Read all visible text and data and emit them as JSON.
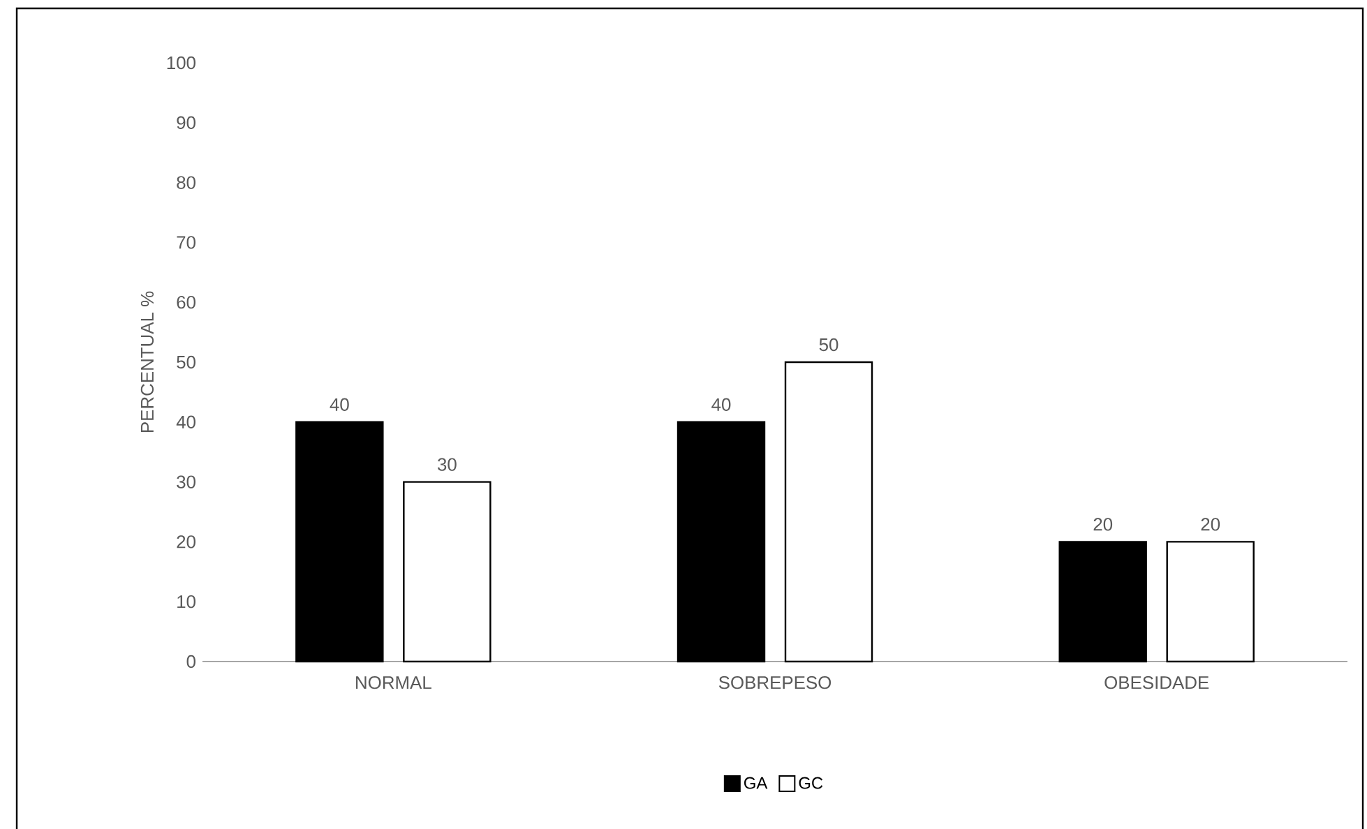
{
  "chart_data": {
    "type": "bar",
    "ylabel": "PERCENTUAL %",
    "categories": [
      "NORMAL",
      "SOBREPESO",
      "OBESIDADE"
    ],
    "series": [
      {
        "name": "GA",
        "color": "#000000",
        "values": [
          40,
          40,
          20
        ]
      },
      {
        "name": "GC",
        "color": "#ffffff",
        "values": [
          30,
          50,
          20
        ]
      }
    ],
    "ylim": [
      0,
      100
    ],
    "yticks": [
      0,
      10,
      20,
      30,
      40,
      50,
      60,
      70,
      80,
      90,
      100
    ],
    "data_labels": true,
    "legend": "bottom"
  }
}
